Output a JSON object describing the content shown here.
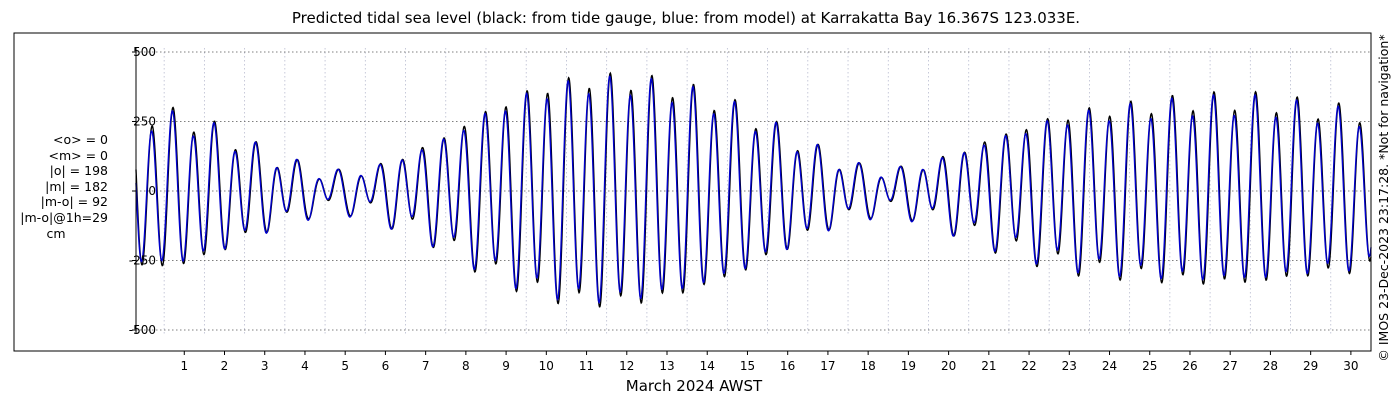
{
  "chart_data": {
    "type": "line",
    "title": "Predicted tidal sea level (black: from tide gauge, blue: from model) at Karrakatta Bay 16.367S 123.033E.",
    "xlabel": "March 2024 AWST",
    "ylabel": "",
    "ylim": [
      -540,
      540
    ],
    "y_ticks": [
      -500,
      -250,
      0,
      250,
      500
    ],
    "y_tick_labels": [
      "-500",
      "-250",
      "0",
      "250",
      "500"
    ],
    "x_range_days": [
      0.3,
      31.0
    ],
    "x_tick_labels": [
      "1",
      "2",
      "3",
      "4",
      "5",
      "6",
      "7",
      "8",
      "9",
      "10",
      "11",
      "12",
      "13",
      "14",
      "15",
      "16",
      "17",
      "18",
      "19",
      "20",
      "21",
      "22",
      "23",
      "24",
      "25",
      "26",
      "27",
      "28",
      "29",
      "30"
    ],
    "grid": true,
    "series": [
      {
        "color": "#000000",
        "semi_diurnal_cycles_per_day": 1.9323,
        "phase_at_start_deg": 80,
        "amplitude_envelope": [
          [
            0.5,
            270
          ],
          [
            1.3,
            265
          ],
          [
            2.0,
            235
          ],
          [
            3.0,
            165
          ],
          [
            4.0,
            100
          ],
          [
            4.8,
            65
          ],
          [
            5.5,
            55
          ],
          [
            6.3,
            80
          ],
          [
            7.0,
            125
          ],
          [
            7.8,
            175
          ],
          [
            8.5,
            240
          ],
          [
            9.5,
            315
          ],
          [
            10.5,
            370
          ],
          [
            11.5,
            395
          ],
          [
            12.5,
            395
          ],
          [
            13.5,
            375
          ],
          [
            14.5,
            335
          ],
          [
            15.5,
            275
          ],
          [
            16.5,
            195
          ],
          [
            17.5,
            120
          ],
          [
            18.3,
            75
          ],
          [
            19.0,
            65
          ],
          [
            19.6,
            75
          ],
          [
            20.5,
            120
          ],
          [
            21.5,
            180
          ],
          [
            22.5,
            230
          ],
          [
            23.5,
            270
          ],
          [
            24.5,
            290
          ],
          [
            25.5,
            305
          ],
          [
            26.5,
            320
          ],
          [
            27.5,
            325
          ],
          [
            28.5,
            320
          ],
          [
            29.5,
            295
          ],
          [
            30.5,
            280
          ],
          [
            31.0,
            270
          ]
        ],
        "diurnal_amplitude": 35,
        "diurnal_cycles_per_day": 1.0027,
        "diurnal_phase_deg": 30
      },
      {
        "color": "#0000cc",
        "semi_diurnal_cycles_per_day": 1.9323,
        "phase_at_start_deg": 90,
        "amplitude_envelope": [
          [
            0.5,
            255
          ],
          [
            1.3,
            250
          ],
          [
            2.0,
            225
          ],
          [
            3.0,
            160
          ],
          [
            4.0,
            100
          ],
          [
            4.8,
            65
          ],
          [
            5.5,
            55
          ],
          [
            6.3,
            80
          ],
          [
            7.0,
            120
          ],
          [
            7.8,
            170
          ],
          [
            8.5,
            230
          ],
          [
            9.5,
            305
          ],
          [
            10.5,
            355
          ],
          [
            11.5,
            380
          ],
          [
            12.5,
            380
          ],
          [
            13.5,
            360
          ],
          [
            14.5,
            325
          ],
          [
            15.5,
            265
          ],
          [
            16.5,
            190
          ],
          [
            17.5,
            118
          ],
          [
            18.3,
            75
          ],
          [
            19.0,
            65
          ],
          [
            19.6,
            75
          ],
          [
            20.5,
            118
          ],
          [
            21.5,
            172
          ],
          [
            22.5,
            220
          ],
          [
            23.5,
            258
          ],
          [
            24.5,
            278
          ],
          [
            25.5,
            292
          ],
          [
            26.5,
            306
          ],
          [
            27.5,
            310
          ],
          [
            28.5,
            306
          ],
          [
            29.5,
            282
          ],
          [
            30.5,
            266
          ],
          [
            31.0,
            258
          ]
        ],
        "diurnal_amplitude": 38,
        "diurnal_cycles_per_day": 1.0027,
        "diurnal_phase_deg": 40
      }
    ]
  },
  "stats": {
    "mean_obs": "<o> = 0",
    "mean_model": "<m> = 0",
    "abs_obs": "|o| = 198",
    "abs_model": "|m| = 182",
    "abs_diff": "|m-o| = 92",
    "abs_diff_1h": "|m-o|@1h=29",
    "unit": "cm"
  },
  "copyright": "© IMOS 23-Dec-2023 23:17:28. *Not for navigation*"
}
